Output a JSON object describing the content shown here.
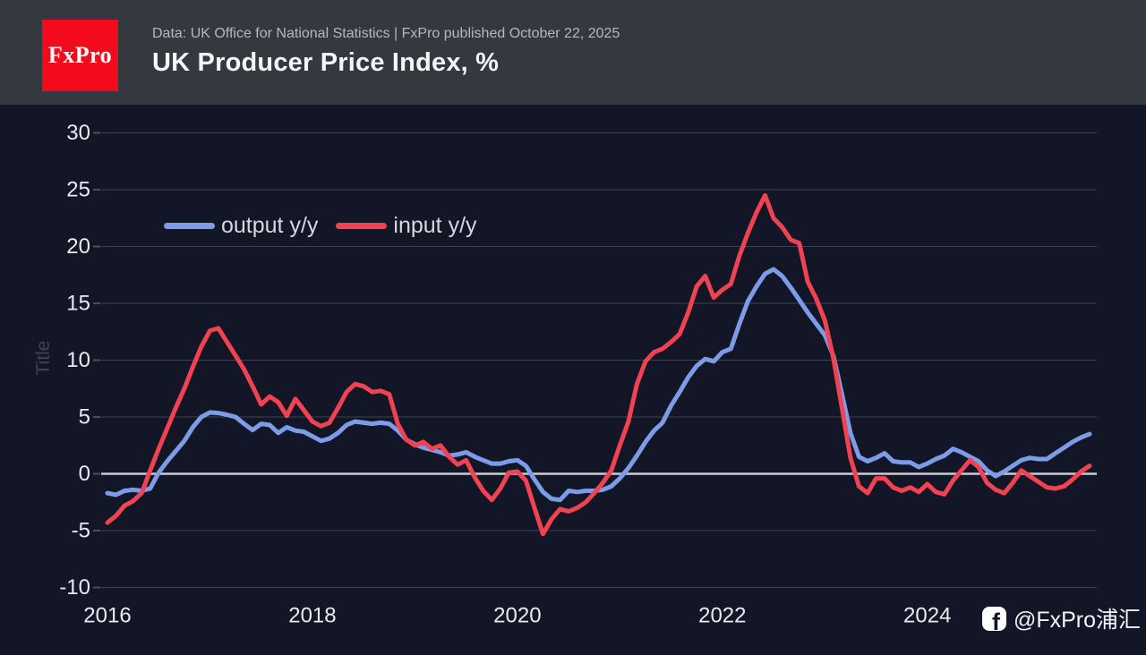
{
  "header": {
    "logo_text": "FxPro",
    "subtitle": "Data: UK Office for National Statistics | FxPro published October 22, 2025",
    "title": "UK Producer Price Index, %"
  },
  "watermark": {
    "icon": "facebook-icon",
    "icon_glyph": "f",
    "handle": "@FxPro浦汇"
  },
  "colors": {
    "page_background": "#121627",
    "header_background": "#35383f",
    "logo_red": "#f30b1d",
    "gridline": "#3d434e",
    "zero_line": "#c9ccd3",
    "tick_text": "#e9ebee",
    "output_blue": "#7d9ce8",
    "input_red": "#f04251"
  },
  "chart_data": {
    "type": "line",
    "title": "UK Producer Price Index, %",
    "ylabel": "Title",
    "x_unit": "month",
    "x_start": "2016-01",
    "x_end": "2025-08",
    "x_tick_labels": [
      "2016",
      "2018",
      "2020",
      "2022",
      "2024"
    ],
    "x_tick_interval_months": 24,
    "y_tick_labels": [
      "30",
      "25",
      "20",
      "15",
      "10",
      "5",
      "0",
      "-5",
      "-10"
    ],
    "ylim": [
      -10,
      31.5
    ],
    "grid": true,
    "zero_line_emphasized": true,
    "legend_position": "top-left-inside",
    "series": [
      {
        "name": "output y/y",
        "color": "#7d9ce8",
        "values": [
          -1.7,
          -1.85,
          -1.5,
          -1.4,
          -1.5,
          -1.3,
          0.1,
          1.1,
          2.0,
          2.9,
          4.1,
          5.0,
          5.4,
          5.35,
          5.2,
          5.0,
          4.4,
          3.85,
          4.4,
          4.3,
          3.6,
          4.1,
          3.8,
          3.7,
          3.3,
          2.9,
          3.1,
          3.6,
          4.3,
          4.6,
          4.5,
          4.4,
          4.5,
          4.4,
          3.8,
          3.0,
          2.6,
          2.3,
          2.1,
          1.9,
          1.6,
          1.7,
          1.9,
          1.5,
          1.2,
          0.9,
          0.9,
          1.1,
          1.2,
          0.7,
          -0.5,
          -1.6,
          -2.2,
          -2.3,
          -1.5,
          -1.6,
          -1.5,
          -1.5,
          -1.4,
          -1.1,
          -0.4,
          0.5,
          1.6,
          2.8,
          3.8,
          4.5,
          6.0,
          7.2,
          8.5,
          9.5,
          10.1,
          9.9,
          10.7,
          11.0,
          13.2,
          15.2,
          16.5,
          17.6,
          18.0,
          17.4,
          16.4,
          15.3,
          14.2,
          13.2,
          12.2,
          10.4,
          7.0,
          3.6,
          1.5,
          1.1,
          1.4,
          1.8,
          1.1,
          1.0,
          1.0,
          0.6,
          0.9,
          1.3,
          1.6,
          2.2,
          1.9,
          1.5,
          1.1,
          0.3,
          -0.2,
          0.2,
          0.7,
          1.2,
          1.4,
          1.3,
          1.3,
          1.8,
          2.3,
          2.8,
          3.2,
          3.5
        ]
      },
      {
        "name": "input y/y",
        "color": "#f04251",
        "values": [
          -4.3,
          -3.7,
          -2.8,
          -2.4,
          -1.7,
          0.3,
          2.2,
          4.0,
          5.8,
          7.5,
          9.4,
          11.2,
          12.6,
          12.8,
          11.6,
          10.4,
          9.2,
          7.7,
          6.1,
          6.8,
          6.3,
          5.1,
          6.6,
          5.6,
          4.6,
          4.2,
          4.5,
          5.8,
          7.2,
          7.9,
          7.7,
          7.2,
          7.3,
          7.0,
          4.4,
          3.0,
          2.5,
          2.8,
          2.2,
          2.5,
          1.5,
          0.8,
          1.2,
          -0.3,
          -1.5,
          -2.3,
          -1.3,
          0.1,
          0.2,
          -0.6,
          -3.0,
          -5.3,
          -4.0,
          -3.1,
          -3.3,
          -3.0,
          -2.5,
          -1.7,
          -0.8,
          0.3,
          2.5,
          4.6,
          7.9,
          9.9,
          10.7,
          11.0,
          11.6,
          12.3,
          14.2,
          16.5,
          17.4,
          15.5,
          16.2,
          16.7,
          19.2,
          21.2,
          23.0,
          24.5,
          22.5,
          21.7,
          20.6,
          20.3,
          16.9,
          15.4,
          13.5,
          10.2,
          5.8,
          1.4,
          -1.1,
          -1.7,
          -0.4,
          -0.4,
          -1.2,
          -1.5,
          -1.2,
          -1.6,
          -0.9,
          -1.6,
          -1.8,
          -0.6,
          0.3,
          1.2,
          0.6,
          -0.8,
          -1.4,
          -1.7,
          -0.8,
          0.3,
          -0.2,
          -0.7,
          -1.2,
          -1.3,
          -1.1,
          -0.5,
          0.2,
          0.7
        ]
      }
    ]
  }
}
